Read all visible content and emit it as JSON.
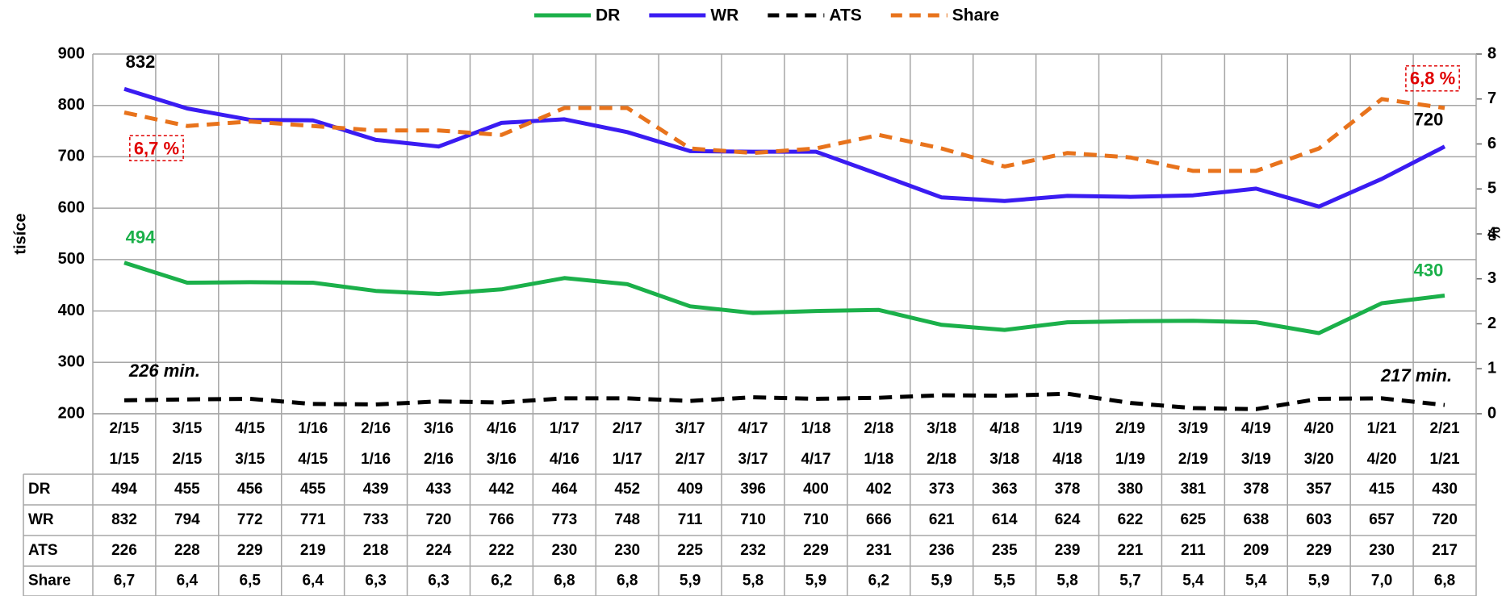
{
  "chart_data": {
    "type": "line",
    "categories": [
      [
        "2/15",
        "1/15"
      ],
      [
        "3/15",
        "2/15"
      ],
      [
        "4/15",
        "3/15"
      ],
      [
        "1/16",
        "4/15"
      ],
      [
        "2/16",
        "1/16"
      ],
      [
        "3/16",
        "2/16"
      ],
      [
        "4/16",
        "3/16"
      ],
      [
        "1/17",
        "4/16"
      ],
      [
        "2/17",
        "1/17"
      ],
      [
        "3/17",
        "2/17"
      ],
      [
        "4/17",
        "3/17"
      ],
      [
        "1/18",
        "4/17"
      ],
      [
        "2/18",
        "1/18"
      ],
      [
        "3/18",
        "2/18"
      ],
      [
        "4/18",
        "3/18"
      ],
      [
        "1/19",
        "4/18"
      ],
      [
        "2/19",
        "1/19"
      ],
      [
        "3/19",
        "2/19"
      ],
      [
        "4/19",
        "3/19"
      ],
      [
        "4/20",
        "3/20"
      ],
      [
        "1/21",
        "4/20"
      ],
      [
        "2/21",
        "1/21"
      ]
    ],
    "series": [
      {
        "name": "DR",
        "color": "#1bb04a",
        "dashed": false,
        "values": [
          494,
          455,
          456,
          455,
          439,
          433,
          442,
          464,
          452,
          409,
          396,
          400,
          402,
          373,
          363,
          378,
          380,
          381,
          378,
          357,
          415,
          430
        ]
      },
      {
        "name": "WR",
        "color": "#3a1cf2",
        "dashed": false,
        "values": [
          832,
          794,
          772,
          771,
          733,
          720,
          766,
          773,
          748,
          711,
          710,
          710,
          666,
          621,
          614,
          624,
          622,
          625,
          638,
          603,
          657,
          720
        ]
      },
      {
        "name": "ATS",
        "color": "#000000",
        "dashed": true,
        "values": [
          226,
          228,
          229,
          219,
          218,
          224,
          222,
          230,
          230,
          225,
          232,
          229,
          231,
          236,
          235,
          239,
          221,
          211,
          209,
          229,
          230,
          217
        ]
      },
      {
        "name": "Share",
        "color": "#e8731c",
        "dashed": true,
        "axis": "y2",
        "values": [
          6.7,
          6.4,
          6.5,
          6.4,
          6.3,
          6.3,
          6.2,
          6.8,
          6.8,
          5.9,
          5.8,
          5.9,
          6.2,
          5.9,
          5.5,
          5.8,
          5.7,
          5.4,
          5.4,
          5.9,
          7.0,
          6.8
        ],
        "value_labels": [
          "6,7",
          "6,4",
          "6,5",
          "6,4",
          "6,3",
          "6,3",
          "6,2",
          "6,8",
          "6,8",
          "5,9",
          "5,8",
          "5,9",
          "6,2",
          "5,9",
          "5,5",
          "5,8",
          "5,7",
          "5,4",
          "5,4",
          "5,9",
          "7,0",
          "6,8"
        ]
      }
    ],
    "ylabel": "tisíce",
    "y2label": "%",
    "ylim": [
      200,
      900
    ],
    "yticks": [
      200,
      300,
      400,
      500,
      600,
      700,
      800,
      900
    ],
    "y2lim": [
      0,
      8
    ],
    "y2ticks": [
      0,
      1,
      2,
      3,
      4,
      5,
      6,
      7,
      8
    ],
    "grid": true,
    "legend": "top",
    "annotations": [
      "832",
      "720",
      "494",
      "430",
      "226 min.",
      "217 min.",
      "6,7 %",
      "6,8 %"
    ]
  }
}
